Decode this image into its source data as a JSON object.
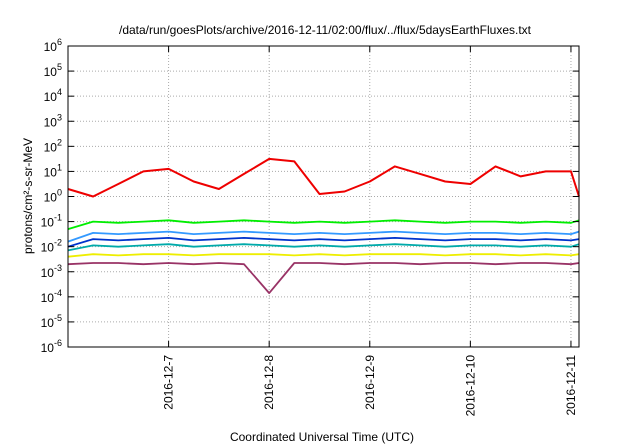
{
  "chart_data": {
    "type": "line",
    "title": "/data/run/goesPlots/archive/2016-12-11/02:00/flux/../flux/5daysEarthFluxes.txt",
    "xlabel": "Coordinated Universal Time (UTC)",
    "ylabel": "protons/cm²-s-sr-MeV",
    "y_scale": "log",
    "ylim_exponents": [
      -6,
      6
    ],
    "y_ticks": [
      {
        "base": "10",
        "exp": "-6"
      },
      {
        "base": "10",
        "exp": "-5"
      },
      {
        "base": "10",
        "exp": "-4"
      },
      {
        "base": "10",
        "exp": "-3"
      },
      {
        "base": "10",
        "exp": "-2"
      },
      {
        "base": "10",
        "exp": "-1"
      },
      {
        "base": "10",
        "exp": "0"
      },
      {
        "base": "10",
        "exp": "1"
      },
      {
        "base": "10",
        "exp": "2"
      },
      {
        "base": "10",
        "exp": "3"
      },
      {
        "base": "10",
        "exp": "4"
      },
      {
        "base": "10",
        "exp": "5"
      },
      {
        "base": "10",
        "exp": "6"
      }
    ],
    "xlim_days": [
      "2016-12-06",
      "2016-12-11 02:00"
    ],
    "x_ticks": [
      {
        "label": "2016-12-7",
        "day": 1.0
      },
      {
        "label": "2016-12-8",
        "day": 2.0
      },
      {
        "label": "2016-12-9",
        "day": 3.0
      },
      {
        "label": "2016-12-10",
        "day": 4.0
      },
      {
        "label": "2016-12-11",
        "day": 5.0
      }
    ],
    "grid": true,
    "x": [
      0.0,
      0.25,
      0.5,
      0.75,
      1.0,
      1.25,
      1.5,
      1.75,
      2.0,
      2.25,
      2.5,
      2.75,
      3.0,
      3.25,
      3.5,
      3.75,
      4.0,
      4.25,
      4.5,
      4.75,
      5.0,
      5.08
    ],
    "series": [
      {
        "color": "#ee0000",
        "log10_values": [
          0.3,
          0.0,
          0.5,
          1.0,
          1.1,
          0.6,
          0.3,
          0.9,
          1.5,
          1.4,
          0.1,
          0.2,
          0.6,
          1.2,
          0.9,
          0.6,
          0.5,
          1.2,
          0.8,
          1.0,
          1.0,
          0.0
        ]
      },
      {
        "color": "#00ee00",
        "log10_values": [
          -1.3,
          -1.0,
          -1.05,
          -1.0,
          -0.95,
          -1.05,
          -1.0,
          -0.95,
          -1.0,
          -1.05,
          -1.0,
          -1.05,
          -1.0,
          -0.95,
          -1.0,
          -1.05,
          -1.0,
          -1.0,
          -1.05,
          -1.0,
          -1.05,
          -0.95
        ]
      },
      {
        "color": "#3399ff",
        "log10_values": [
          -1.8,
          -1.45,
          -1.5,
          -1.45,
          -1.4,
          -1.5,
          -1.45,
          -1.4,
          -1.45,
          -1.5,
          -1.45,
          -1.5,
          -1.45,
          -1.4,
          -1.45,
          -1.5,
          -1.45,
          -1.45,
          -1.5,
          -1.45,
          -1.5,
          -1.4
        ]
      },
      {
        "color": "#0033cc",
        "log10_values": [
          -2.0,
          -1.7,
          -1.75,
          -1.7,
          -1.65,
          -1.75,
          -1.7,
          -1.65,
          -1.7,
          -1.75,
          -1.7,
          -1.75,
          -1.7,
          -1.65,
          -1.7,
          -1.75,
          -1.7,
          -1.7,
          -1.75,
          -1.7,
          -1.75,
          -1.7
        ]
      },
      {
        "color": "#00aaaa",
        "log10_values": [
          -2.15,
          -1.95,
          -2.0,
          -1.95,
          -1.9,
          -2.0,
          -1.95,
          -1.9,
          -1.95,
          -2.0,
          -1.95,
          -2.0,
          -1.95,
          -1.9,
          -1.95,
          -2.0,
          -1.95,
          -1.95,
          -2.0,
          -1.95,
          -2.0,
          -1.9
        ]
      },
      {
        "color": "#eeee00",
        "log10_values": [
          -2.4,
          -2.3,
          -2.35,
          -2.3,
          -2.3,
          -2.35,
          -2.3,
          -2.3,
          -2.3,
          -2.35,
          -2.3,
          -2.35,
          -2.3,
          -2.3,
          -2.3,
          -2.35,
          -2.3,
          -2.3,
          -2.35,
          -2.3,
          -2.35,
          -2.3
        ]
      },
      {
        "color": "#993366",
        "log10_values": [
          -2.7,
          -2.65,
          -2.65,
          -2.7,
          -2.65,
          -2.7,
          -2.65,
          -2.7,
          -3.85,
          -2.65,
          -2.65,
          -2.7,
          -2.65,
          -2.65,
          -2.7,
          -2.65,
          -2.65,
          -2.7,
          -2.65,
          -2.65,
          -2.7,
          -2.65
        ]
      }
    ]
  }
}
